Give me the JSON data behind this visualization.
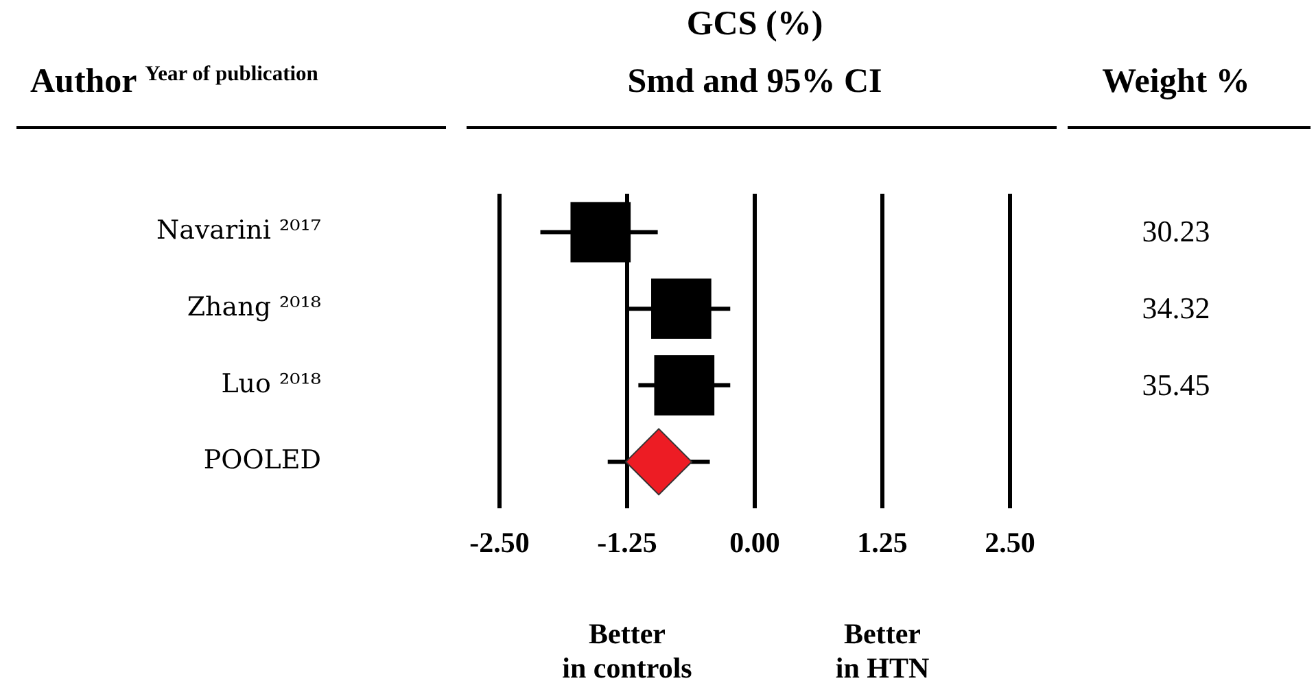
{
  "chart_data": {
    "type": "scatter",
    "orientation": "horizontal",
    "title": "GCS (%)",
    "subtitle": "Smd and 95% CI",
    "ylabel": "Author $^{Year of publication}$",
    "categories": [
      "Navarini ²⁰¹⁷",
      "Zhang ²⁰¹⁸",
      "Luo ²⁰¹⁸",
      "POOLED"
    ],
    "series": [
      {
        "marker": "square",
        "color": "#000000",
        "values": [
          -1.51,
          -0.72,
          -0.69,
          null
        ],
        "errors": [
          [
            -2.1,
            -0.95
          ],
          [
            -1.24,
            -0.24
          ],
          [
            -1.14,
            -0.24
          ],
          null
        ]
      },
      {
        "marker": "diamond",
        "color": "#ed1c24",
        "values": [
          null,
          null,
          null,
          -0.94
        ],
        "errors": [
          null,
          null,
          null,
          [
            -1.44,
            -0.44
          ]
        ]
      }
    ],
    "xlim": [
      -2.5,
      2.5
    ],
    "xticks": [
      {
        "value": -2.5,
        "label": "-2.50"
      },
      {
        "value": -1.25,
        "label": "-1.25"
      },
      {
        "value": 0,
        "label": "0.00"
      },
      {
        "value": 1.25,
        "label": "1.25"
      },
      {
        "value": 2.5,
        "label": "2.50"
      }
    ],
    "grid": "x",
    "annotations": [
      "Weight %",
      "Better in controls",
      "Better in HTN",
      "30.23",
      "34.32",
      "35.45"
    ]
  }
}
